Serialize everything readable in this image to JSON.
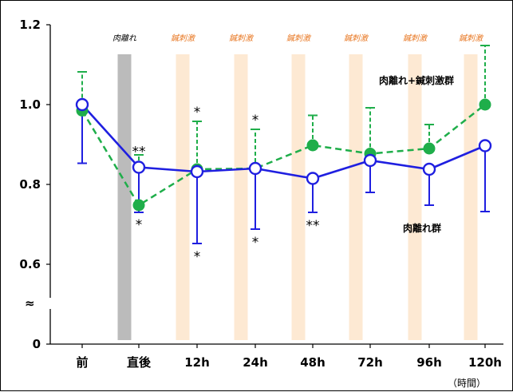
{
  "chart_data": {
    "type": "line",
    "categories": [
      "前",
      "直後",
      "12h",
      "24h",
      "48h",
      "72h",
      "96h",
      "120h"
    ],
    "x_unit": "（時間）",
    "ylim": [
      0,
      1.2
    ],
    "y_ticks": [
      "0",
      "0.6",
      "0.8",
      "1.0",
      "1.2"
    ],
    "axis_break_symbol": "≈",
    "grid": false,
    "bands": [
      {
        "category_index": 1,
        "label": "肉離れ",
        "color": "#bbbbbb",
        "label_color": "#000000"
      },
      {
        "category_index": 2,
        "label": "鍼刺激",
        "color": "#fde9d3",
        "label_color": "#e87722"
      },
      {
        "category_index": 3,
        "label": "鍼刺激",
        "color": "#fde9d3",
        "label_color": "#e87722"
      },
      {
        "category_index": 4,
        "label": "鍼刺激",
        "color": "#fde9d3",
        "label_color": "#e87722"
      },
      {
        "category_index": 5,
        "label": "鍼刺激",
        "color": "#fde9d3",
        "label_color": "#e87722"
      },
      {
        "category_index": 6,
        "label": "鍼刺激",
        "color": "#fde9d3",
        "label_color": "#e87722"
      },
      {
        "category_index": 7,
        "label": "鍼刺激",
        "color": "#fde9d3",
        "label_color": "#e87722"
      }
    ],
    "series": [
      {
        "name": "肉離れ群",
        "color": "#1f1fe0",
        "marker": "open-circle",
        "line": "solid",
        "values": [
          1.0,
          0.843,
          0.832,
          0.84,
          0.815,
          0.86,
          0.838,
          0.897
        ],
        "error_minus": [
          0.147,
          0.113,
          0.18,
          0.152,
          0.085,
          0.08,
          0.09,
          0.165
        ],
        "error_dir": [
          "down",
          "down",
          "down",
          "down",
          "down",
          "down",
          "down",
          "down"
        ],
        "significance": [
          "",
          "**",
          "*",
          "*",
          "**",
          "",
          "",
          ""
        ],
        "sig_position": [
          "",
          "above",
          "below",
          "below",
          "below",
          "",
          "",
          ""
        ]
      },
      {
        "name": "肉離れ+鍼刺激群",
        "color": "#1fae4a",
        "marker": "filled-circle",
        "line": "dashed",
        "values": [
          0.985,
          0.748,
          0.838,
          0.84,
          0.898,
          0.877,
          0.89,
          1.0
        ],
        "error_plus": [
          0.097,
          0.126,
          0.12,
          0.098,
          0.075,
          0.115,
          0.06,
          0.148
        ],
        "significance": [
          "",
          "*",
          "*",
          "*",
          "",
          "",
          "",
          ""
        ],
        "sig_position": [
          "",
          "below",
          "above",
          "above",
          "",
          "",
          "",
          ""
        ]
      }
    ]
  }
}
